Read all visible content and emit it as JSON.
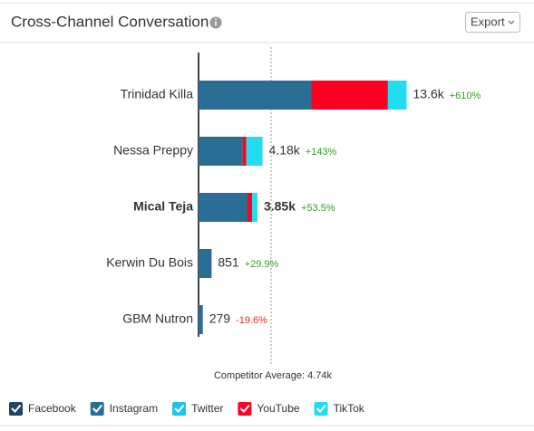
{
  "chart_data": {
    "type": "stacked-barh",
    "title": "Cross-Channel Conversation",
    "button": "Export",
    "categories": [
      "Trinidad Killa",
      "Nessa Preppy",
      "Mical Teja",
      "Kerwin Du Bois",
      "GBM Nutron"
    ],
    "highlight": "Mical Teja",
    "series": [
      {
        "name": "Facebook",
        "color": "#1d4567",
        "values": [
          0,
          0,
          0,
          0,
          0
        ]
      },
      {
        "name": "Instagram",
        "color": "#2a6e96",
        "values": [
          7350,
          2880,
          3200,
          830,
          279
        ]
      },
      {
        "name": "Twitter",
        "color": "#1cc3ee",
        "values": [
          0,
          0,
          0,
          0,
          0
        ]
      },
      {
        "name": "YouTube",
        "color": "#ff0022",
        "values": [
          5030,
          240,
          300,
          21,
          0
        ]
      },
      {
        "name": "TikTok",
        "color": "#22dcf0",
        "values": [
          1220,
          1060,
          350,
          0,
          0
        ]
      }
    ],
    "totals": {
      "values": [
        13600,
        4180,
        3850,
        851,
        279
      ],
      "value_labels": [
        "13.6k",
        "4.18k",
        "3.85k",
        "851",
        "279"
      ]
    },
    "changes": {
      "values": [
        610,
        143,
        53.5,
        29.9,
        -19.6
      ],
      "value_labels": [
        "+610%",
        "+143%",
        "+53.5%",
        "+29.9%",
        "-19.6%"
      ]
    },
    "competitor_average": {
      "value": 4740,
      "label": "Competitor Average: 4.74k"
    }
  }
}
